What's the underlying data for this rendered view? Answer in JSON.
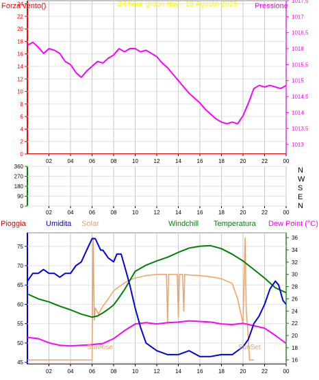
{
  "colors": {
    "pressure": "#ff00ff",
    "wind": "#ff0000",
    "title": "#ffff00",
    "humidity": "#0000e0",
    "temperature": "#008000",
    "dewpoint": "#ff00ff",
    "solar": "#f4a060",
    "windchill": "#008000",
    "rain": "#cc0000",
    "direction_axis": "#008000"
  },
  "chart_data": [
    {
      "type": "line",
      "title": "24 hour graph day : 13 Agosto 2025",
      "left_label": "Forza vento()",
      "right_label": "Pressione",
      "x_ticks": [
        "02",
        "04",
        "06",
        "08",
        "10",
        "12",
        "14",
        "16",
        "18",
        "20",
        "22",
        "00"
      ],
      "left_ticks": [
        "0",
        "2",
        "4",
        "6",
        "8",
        "10",
        "12",
        "14",
        "16",
        "18",
        "20",
        "22",
        "24"
      ],
      "right_ticks": [
        "1013",
        "1013,5",
        "1014",
        "1014,5",
        "1015",
        "1015,5",
        "1016",
        "1016,5",
        "1017",
        "1017,5"
      ],
      "ylim_left": [
        0,
        24.5
      ],
      "ylim_right": [
        1012.7,
        1017.5
      ],
      "series": [
        {
          "name": "Pressione",
          "x": [
            0.0,
            0.5,
            1.0,
            1.5,
            2.0,
            2.5,
            3.0,
            3.5,
            4.0,
            4.5,
            5.0,
            5.5,
            6.0,
            6.5,
            7.0,
            7.5,
            8.0,
            8.5,
            9.0,
            9.5,
            10.0,
            10.5,
            11.0,
            11.5,
            12.0,
            12.5,
            13.0,
            13.5,
            14.0,
            14.5,
            15.0,
            15.5,
            16.0,
            16.5,
            17.0,
            17.5,
            18.0,
            18.5,
            19.0,
            19.5,
            20.0,
            20.5,
            21.0,
            21.5,
            22.0,
            22.5,
            23.0,
            23.5,
            24.0
          ],
          "y": [
            1016.1,
            1016.2,
            1016.05,
            1015.85,
            1016.0,
            1015.95,
            1015.85,
            1015.6,
            1015.5,
            1015.25,
            1015.1,
            1015.3,
            1015.45,
            1015.6,
            1015.55,
            1015.7,
            1015.8,
            1016.0,
            1015.9,
            1016.0,
            1016.0,
            1015.9,
            1015.95,
            1015.85,
            1015.75,
            1015.55,
            1015.4,
            1015.2,
            1015.0,
            1014.8,
            1014.6,
            1014.45,
            1014.3,
            1014.1,
            1013.95,
            1013.8,
            1013.7,
            1013.65,
            1013.7,
            1013.65,
            1013.9,
            1014.3,
            1014.75,
            1014.85,
            1014.8,
            1014.85,
            1014.8,
            1014.75,
            1014.85
          ]
        },
        {
          "name": "Forza vento",
          "x": [
            0,
            24
          ],
          "y": [
            0,
            0
          ]
        }
      ]
    },
    {
      "type": "line",
      "left_ticks": [
        "0",
        "90",
        "180",
        "270",
        "360"
      ],
      "right_ticks": [
        "N",
        "W",
        "S",
        "E",
        "N"
      ],
      "x_ticks": [
        "02",
        "04",
        "06",
        "08",
        "10",
        "12",
        "14",
        "16",
        "18",
        "20",
        "22",
        "00"
      ],
      "ylim": [
        0,
        360
      ]
    },
    {
      "type": "line",
      "legend": [
        "Pioggia",
        "Umidita",
        "Solar",
        "Windchill",
        "Temperatura",
        "Dew Point (°C)"
      ],
      "left_ticks": [
        "45",
        "50",
        "55",
        "60",
        "65",
        "70",
        "75"
      ],
      "right_ticks": [
        "16",
        "18",
        "20",
        "22",
        "24",
        "26",
        "28",
        "30",
        "32",
        "34",
        "36"
      ],
      "x_ticks": [
        "02",
        "04",
        "06",
        "08",
        "10",
        "12",
        "14",
        "16",
        "18",
        "20",
        "22",
        "00"
      ],
      "ylim_left": [
        44.5,
        78.5
      ],
      "ylim_right": [
        15.3,
        36.8
      ],
      "annotations": [
        "SunRise",
        "SunSet"
      ],
      "series": [
        {
          "name": "Umidita",
          "axis": "left",
          "x": [
            0.0,
            0.5,
            1.0,
            1.5,
            2.0,
            2.5,
            3.0,
            3.5,
            4.0,
            4.5,
            5.0,
            5.5,
            6.0,
            6.3,
            6.8,
            7.0,
            7.5,
            8.0,
            8.3,
            8.7,
            9.0,
            9.5,
            10.0,
            10.5,
            11.0,
            11.5,
            12.0,
            13.0,
            14.0,
            15.0,
            16.0,
            17.0,
            18.0,
            19.0,
            19.5,
            20.0,
            20.5,
            21.0,
            21.5,
            22.0,
            22.5,
            23.0,
            23.3,
            23.7,
            24.0
          ],
          "y": [
            66,
            68,
            68,
            69,
            68,
            68,
            67,
            68,
            68,
            70,
            71,
            74,
            77,
            77,
            74,
            74,
            72,
            71,
            73,
            73,
            70,
            65,
            59,
            54,
            50,
            49,
            48,
            47,
            47,
            48,
            46.5,
            46.5,
            47,
            47,
            48,
            49,
            51,
            55,
            57,
            60,
            64,
            66,
            65,
            61,
            60
          ]
        },
        {
          "name": "Temperatura",
          "axis": "right",
          "x": [
            0.0,
            1.0,
            2.0,
            3.0,
            4.0,
            5.0,
            6.0,
            6.5,
            7.0,
            7.5,
            8.0,
            8.5,
            9.0,
            9.5,
            10.0,
            11.0,
            12.0,
            13.0,
            14.0,
            15.0,
            16.0,
            17.0,
            18.0,
            19.0,
            20.0,
            21.0,
            22.0,
            23.0,
            24.0
          ],
          "y": [
            26.8,
            26,
            25.5,
            24.8,
            24.2,
            23.5,
            23.0,
            23.2,
            23.7,
            24.3,
            25.0,
            26.2,
            27.5,
            29.0,
            30.5,
            31.5,
            32.2,
            32.8,
            33.6,
            34.3,
            34.6,
            34.7,
            34.2,
            33.3,
            32.2,
            30.8,
            29.4,
            27.8,
            27.0
          ]
        },
        {
          "name": "Dew Point (°C)",
          "axis": "right",
          "x": [
            0.0,
            1.0,
            2.0,
            3.0,
            4.0,
            5.0,
            6.0,
            7.0,
            8.0,
            9.0,
            10.0,
            11.0,
            12.0,
            13.0,
            14.0,
            15.0,
            16.0,
            17.0,
            18.0,
            19.0,
            20.0,
            21.0,
            22.0,
            23.0,
            24.0
          ],
          "y": [
            19.7,
            19.5,
            18.8,
            18.4,
            18.3,
            18.4,
            18.5,
            18.7,
            19.5,
            20.8,
            21.9,
            22.1,
            21.9,
            22.1,
            22.2,
            22.4,
            22.3,
            22.2,
            21.9,
            21.8,
            22.0,
            21.6,
            21.2,
            20.0,
            18.7
          ]
        },
        {
          "name": "Solar",
          "axis": "right",
          "x": [
            0.0,
            6.0,
            6.1,
            6.2,
            6.3,
            6.6,
            7.0,
            7.5,
            8.0,
            8.5,
            9.0,
            9.5,
            10.0,
            10.5,
            11.0,
            12.0,
            12.9,
            13.0,
            13.1,
            13.9,
            14.0,
            14.1,
            14.4,
            14.5,
            14.6,
            15.0,
            16.0,
            17.0,
            18.0,
            19.0,
            19.5,
            20.0,
            20.2,
            20.3,
            20.4,
            20.6,
            21.0
          ],
          "y": [
            16,
            16,
            36,
            22.5,
            24.5,
            23.5,
            24.8,
            26,
            27.3,
            28,
            28.6,
            29.1,
            29.4,
            29.6,
            29.8,
            30.0,
            30.0,
            22,
            30.0,
            30.0,
            23,
            30.0,
            30.0,
            24,
            30.0,
            29.9,
            29.8,
            29.6,
            29.3,
            28.5,
            26,
            22,
            36,
            24,
            22,
            16,
            16
          ]
        },
        {
          "name": "Pioggia",
          "axis": "left",
          "x": [
            0,
            24
          ],
          "y": [
            44.5,
            44.5
          ]
        }
      ]
    }
  ]
}
